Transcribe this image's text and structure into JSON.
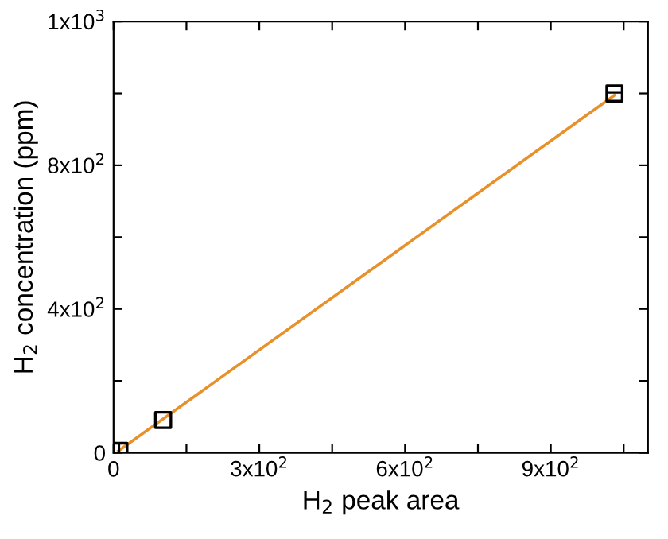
{
  "chart_data": {
    "type": "scatter",
    "xlabel": "H$_{2}$ peak area",
    "ylabel": "H$_{2}$ concentration (ppm)",
    "xlim": [
      0,
      1100
    ],
    "ylim": [
      0,
      1200
    ],
    "xticks": [
      0,
      {
        "value": 150,
        "label": null
      },
      {
        "value": 300,
        "label": "3x10$^{2}$"
      },
      {
        "value": 450,
        "label": null
      },
      {
        "value": 600,
        "label": "6x10$^{2}$"
      },
      {
        "value": 750,
        "label": null
      },
      {
        "value": 900,
        "label": "9x10$^{2}$"
      },
      {
        "value": 1050,
        "label": null
      }
    ],
    "yticks": [
      0,
      {
        "value": 200,
        "label": null
      },
      {
        "value": 400,
        "label": "4x10$^{2}$"
      },
      {
        "value": 600,
        "label": null
      },
      {
        "value": 800,
        "label": "8x10$^{2}$"
      },
      {
        "value": 1000,
        "label": null
      },
      {
        "value": 1200,
        "label": "1x10$^{3}$"
      }
    ],
    "grid": false,
    "legend": false,
    "series": [
      {
        "x": [
          12,
          102,
          1031
        ],
        "values": [
          5,
          91,
          1000
        ],
        "color": "#000000",
        "marker": "square"
      },
      {
        "type": "line",
        "x": [
          10,
          1031
        ],
        "values": [
          5,
          995
        ],
        "color": "#e8902a",
        "marker": "none",
        "line_style": "solid"
      }
    ]
  }
}
